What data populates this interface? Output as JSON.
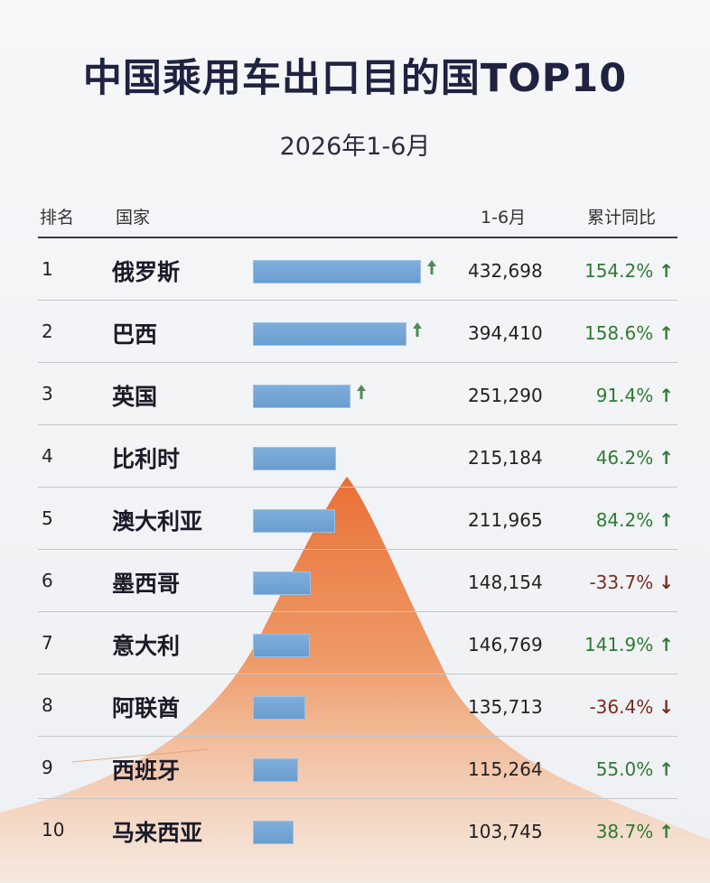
{
  "title": "中国乘用车出口目的国TOP10",
  "subtitle": "2026年1-6月",
  "headers": {
    "rank": "排名",
    "country": "国家",
    "value": "1-6月",
    "yoy": "累计同比"
  },
  "colors": {
    "bar": "#6a9dd0",
    "up": "#2f7a34",
    "down": "#7a2a22",
    "mountain": "#e8763a",
    "trend_arrow": "#4f8a57"
  },
  "chart_data": {
    "type": "bar",
    "orientation": "horizontal",
    "categories": [
      "俄罗斯",
      "巴西",
      "英国",
      "比利时",
      "澳大利亚",
      "墨西哥",
      "意大利",
      "阿联酋",
      "西班牙",
      "马来西亚"
    ],
    "ranks": [
      "1",
      "2",
      "3",
      "4",
      "5",
      "6",
      "7",
      "8",
      "9",
      "10"
    ],
    "values": [
      432698,
      394410,
      251290,
      215184,
      211965,
      148154,
      146769,
      135713,
      115264,
      103745
    ],
    "value_labels": [
      "432,698",
      "394,410",
      "251,290",
      "215,184",
      "211,965",
      "148,154",
      "146,769",
      "135,713",
      "115,264",
      "103,745"
    ],
    "yoy": [
      "154.2%",
      "158.6%",
      "91.4%",
      "46.2%",
      "84.2%",
      "-33.7%",
      "141.9%",
      "-36.4%",
      "55.0%",
      "38.7%"
    ],
    "yoy_direction": [
      "up",
      "up",
      "up",
      "up",
      "up",
      "down",
      "up",
      "down",
      "up",
      "up"
    ],
    "trend_arrow_on_bar": [
      true,
      true,
      true,
      false,
      false,
      false,
      false,
      false,
      false,
      false
    ],
    "xlim": [
      0,
      432698
    ],
    "xlabel": "",
    "ylabel": "",
    "grid": false,
    "legend": "none"
  }
}
